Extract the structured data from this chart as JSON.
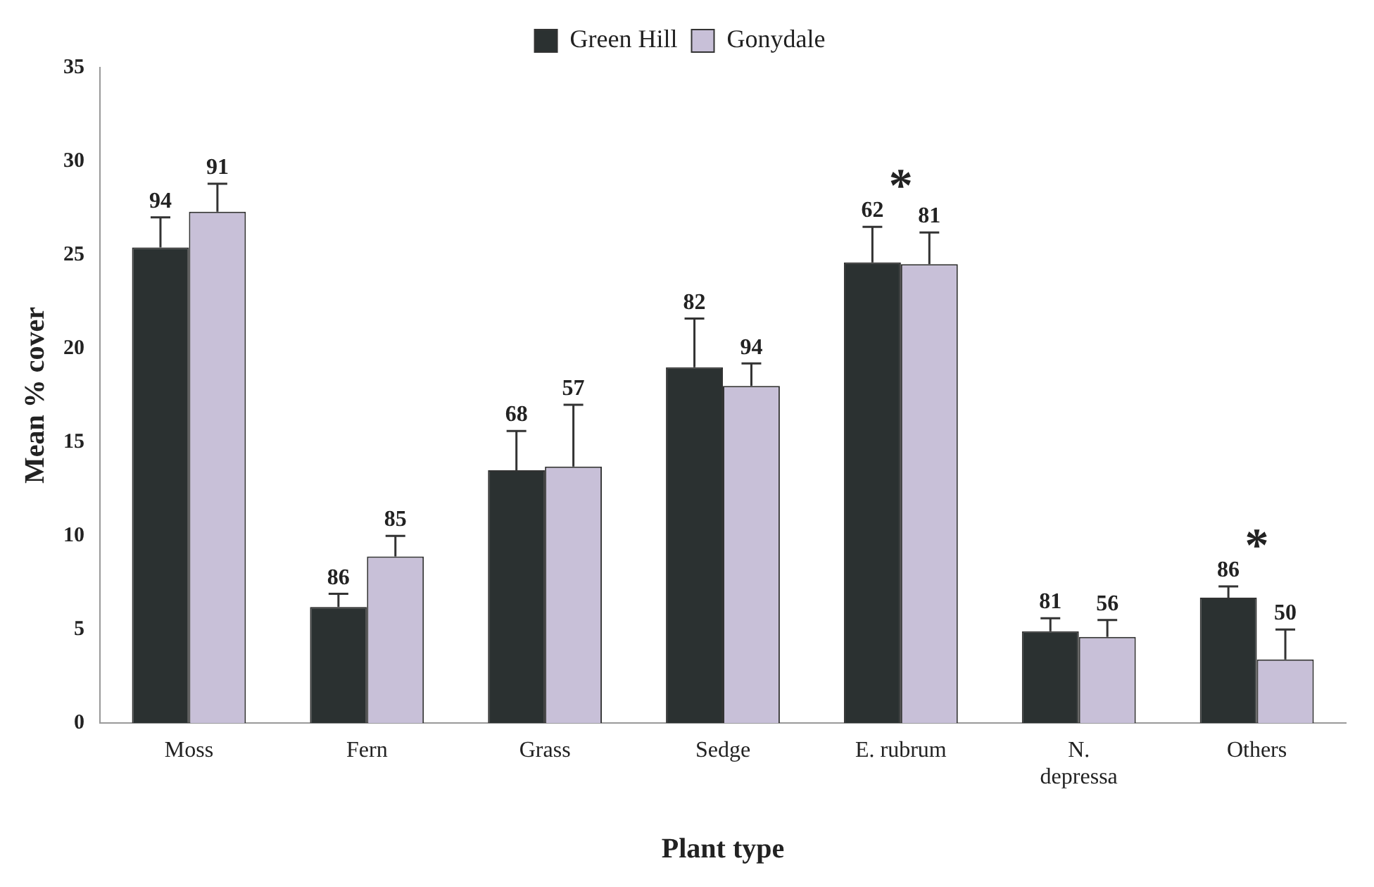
{
  "chart_data": {
    "type": "bar",
    "xlabel": "Plant type",
    "ylabel": "Mean % cover",
    "categories": [
      "Moss",
      "Fern",
      "Grass",
      "Sedge",
      "E. rubrum",
      "N. depressa",
      "Others"
    ],
    "series": [
      {
        "name": "Green Hill",
        "color": "#2b3131",
        "values": [
          25.4,
          6.2,
          13.5,
          19.0,
          24.6,
          4.9,
          6.7
        ],
        "errors": [
          [
            25.4,
            27.0
          ],
          [
            6.2,
            6.9
          ],
          [
            13.5,
            15.6
          ],
          [
            19.0,
            21.6
          ],
          [
            24.6,
            26.5
          ],
          [
            4.9,
            5.6
          ],
          [
            6.7,
            7.3
          ]
        ]
      },
      {
        "name": "Gonydale",
        "color": "#c8c0d8",
        "values": [
          27.3,
          8.9,
          13.7,
          18.0,
          24.5,
          4.6,
          3.4
        ],
        "errors": [
          [
            27.3,
            28.8
          ],
          [
            8.9,
            10.0
          ],
          [
            13.7,
            17.0
          ],
          [
            18.0,
            19.2
          ],
          [
            24.5,
            26.2
          ],
          [
            4.6,
            5.5
          ],
          [
            3.4,
            5.0
          ]
        ]
      }
    ],
    "ylim": [
      0,
      35
    ],
    "yticks": [
      0,
      5,
      10,
      15,
      20,
      25,
      30,
      35
    ],
    "grid": false,
    "legend": "top",
    "annotations": [
      "94",
      "91",
      "86",
      "85",
      "68",
      "57",
      "82",
      "94",
      "62",
      "81",
      "81",
      "56",
      "86",
      "50",
      "*",
      "*"
    ]
  }
}
